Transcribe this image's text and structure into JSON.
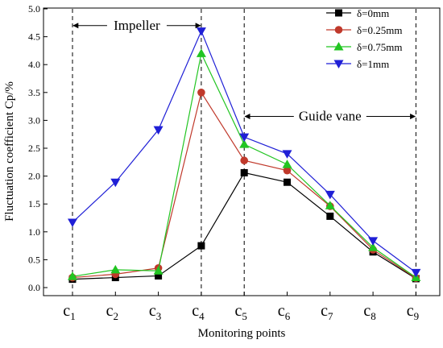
{
  "chart_data": {
    "type": "line",
    "xlabel": "Monitoring points",
    "ylabel": "Fluctuation coefficient Cp/%",
    "ylim": [
      0,
      5.0
    ],
    "yticks": [
      "0.0",
      "0.5",
      "1.0",
      "1.5",
      "2.0",
      "2.5",
      "3.0",
      "3.5",
      "4.0",
      "4.5",
      "5.0"
    ],
    "categories": [
      {
        "base": "c",
        "sub": "1"
      },
      {
        "base": "c",
        "sub": "2"
      },
      {
        "base": "c",
        "sub": "3"
      },
      {
        "base": "c",
        "sub": "4"
      },
      {
        "base": "c",
        "sub": "5"
      },
      {
        "base": "c",
        "sub": "6"
      },
      {
        "base": "c",
        "sub": "7"
      },
      {
        "base": "c",
        "sub": "8"
      },
      {
        "base": "c",
        "sub": "9"
      }
    ],
    "legend_position": "top-right",
    "series": [
      {
        "name": "δ=0mm",
        "color": "#000000",
        "marker": "square",
        "values": [
          0.15,
          0.18,
          0.21,
          0.75,
          2.06,
          1.89,
          1.28,
          0.64,
          0.16
        ]
      },
      {
        "name": "δ=0.25mm",
        "color": "#c0392b",
        "marker": "circle",
        "values": [
          0.18,
          0.24,
          0.35,
          3.5,
          2.28,
          2.1,
          1.46,
          0.68,
          0.17
        ]
      },
      {
        "name": "δ=0.75mm",
        "color": "#22c522",
        "marker": "triangle-up",
        "values": [
          0.2,
          0.32,
          0.3,
          4.2,
          2.57,
          2.21,
          1.47,
          0.72,
          0.18
        ]
      },
      {
        "name": "δ=1mm",
        "color": "#1f1fd6",
        "marker": "triangle-down",
        "values": [
          1.17,
          1.89,
          2.83,
          4.6,
          2.7,
          2.4,
          1.67,
          0.84,
          0.27
        ]
      }
    ],
    "vlines_at": [
      "c1",
      "c4",
      "c5",
      "c9"
    ],
    "annotations": [
      {
        "text": "Impeller",
        "span": [
          "c1",
          "c4"
        ],
        "y": 4.7
      },
      {
        "text": "Guide vane",
        "span": [
          "c5",
          "c9"
        ],
        "y": 3.07
      }
    ]
  }
}
